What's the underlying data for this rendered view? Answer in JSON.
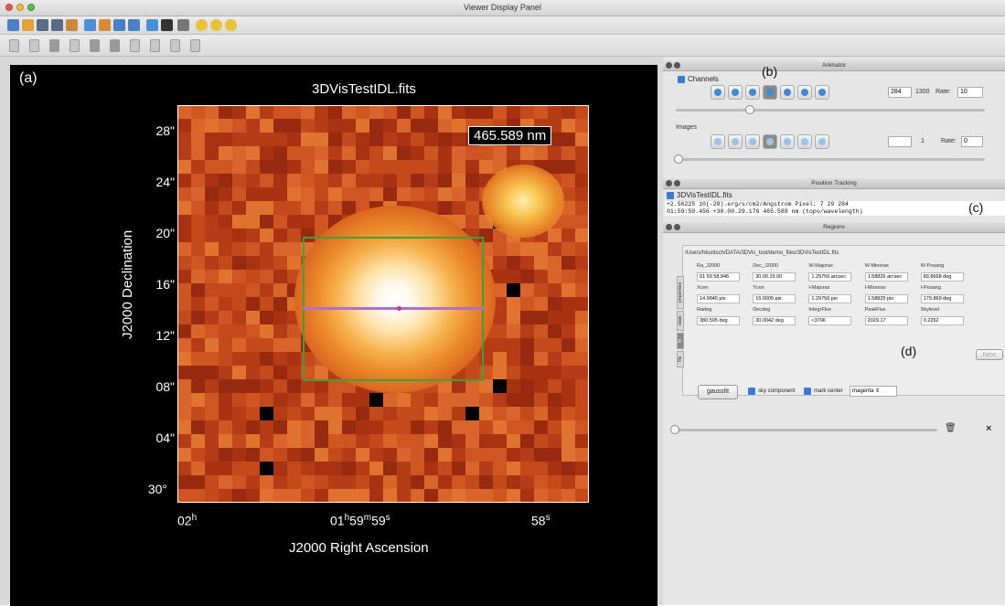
{
  "window": {
    "title": "Viewer Display Panel"
  },
  "toolbar1": {
    "icons": [
      "open-icon",
      "data-manager-icon",
      "adjust-icon",
      "zoom-icon",
      "histogram-icon",
      "regions-icon",
      "annotation-icon",
      "print-icon",
      "save-icon",
      "preferences-icon",
      "fit-icon",
      "print2-icon",
      "zoom-in-icon",
      "zoom-out-icon",
      "zoom-fit-icon"
    ]
  },
  "toolbar2": {
    "icons": [
      "zoom-tool-icon",
      "pan-tool-icon",
      "crosshair-tool-icon",
      "stats-tool-icon",
      "rectangle-tool-icon",
      "ellipse-tool-icon",
      "polygon-tool-icon",
      "polyline-tool-icon",
      "ruler-tool-icon",
      "point-tool-icon"
    ]
  },
  "viewer": {
    "panel_label": "(a)",
    "file_name": "3DVisTestIDL.fits",
    "wavelength": "465.589 nm",
    "y_axis_label": "J2000 Declination",
    "x_axis_label": "J2000 Right Ascension",
    "y_ticks": [
      "28\"",
      "24\"",
      "20\"",
      "16\"",
      "12\"",
      "08\"",
      "04\"",
      "30°"
    ],
    "x_ticks": [
      {
        "main": "02",
        "sup": "h"
      },
      {
        "main": "01",
        "sup": "h",
        "main2": "59",
        "sup2": "m",
        "main3": "59",
        "sup3": "s"
      },
      {
        "main": "58",
        "sup": "s"
      }
    ]
  },
  "animator": {
    "title": "Animator",
    "label": "(b)",
    "channels_label": "Channels",
    "channel_value": "284",
    "channel_total": "1300",
    "rate_label": "Rate:",
    "rate_value": "10",
    "images_label": "Images",
    "images_value": "",
    "images_total": "1",
    "images_rate": "0"
  },
  "tracking": {
    "title": "Position Tracking",
    "label": "(c)",
    "file_label": "3DVisTestIDL.fits",
    "line1": "+2.56225 10(-20).erg/s/cm2/Angstrom      Pixel: 7 29 284",
    "line2": "01:59:59.456  +30.00.29.176  465.589 nm (topo/wavelength)"
  },
  "regions": {
    "title": "Regions",
    "label": "(d)",
    "path": "/Users/hkuntsch/DATA/3DVis_tool/demo_files/3DVisTestIDL.fits",
    "vtabs": [
      "properties",
      "stats",
      "fit",
      "file"
    ],
    "rows": [
      [
        {
          "h": "Ra_J2000",
          "v": "01 59 58.846"
        },
        {
          "h": "Dec_J2000",
          "v": "30.00.15.00"
        },
        {
          "h": "W-Majorax",
          "v": "1.29756 arcsec"
        },
        {
          "h": "W-Minorax",
          "v": "1.58826 arcsec"
        },
        {
          "h": "W-Posang",
          "v": "89.8668 deg"
        }
      ],
      [
        {
          "h": "Xcen",
          "v": "14.9845 pix"
        },
        {
          "h": "Ycen",
          "v": "15.0005 pix"
        },
        {
          "h": "I-Majorax",
          "v": "1.29756 pix"
        },
        {
          "h": "I-Minorax",
          "v": "1.58825 pix"
        },
        {
          "h": "I-Posang",
          "v": "179.869 deg"
        }
      ],
      [
        {
          "h": "Radeg",
          "v": "380.595 deg"
        },
        {
          "h": "Decdeg",
          "v": "30.0042 deg"
        },
        {
          "h": "IntegrFlux",
          "v": "<3706"
        },
        {
          "h": "PeakFlux",
          "v": "2029.17"
        },
        {
          "h": "Skylevel",
          "v": "0.2262"
        }
      ]
    ],
    "next_label": "Next",
    "gaussfit_label": "gaussfit",
    "sky_component_label": "sky component",
    "mark_center_label": "mark center",
    "color_value": "magenta"
  },
  "colors": {
    "accent": "#3a7bd5",
    "region": "#3da13a",
    "line": "#b070c8"
  }
}
